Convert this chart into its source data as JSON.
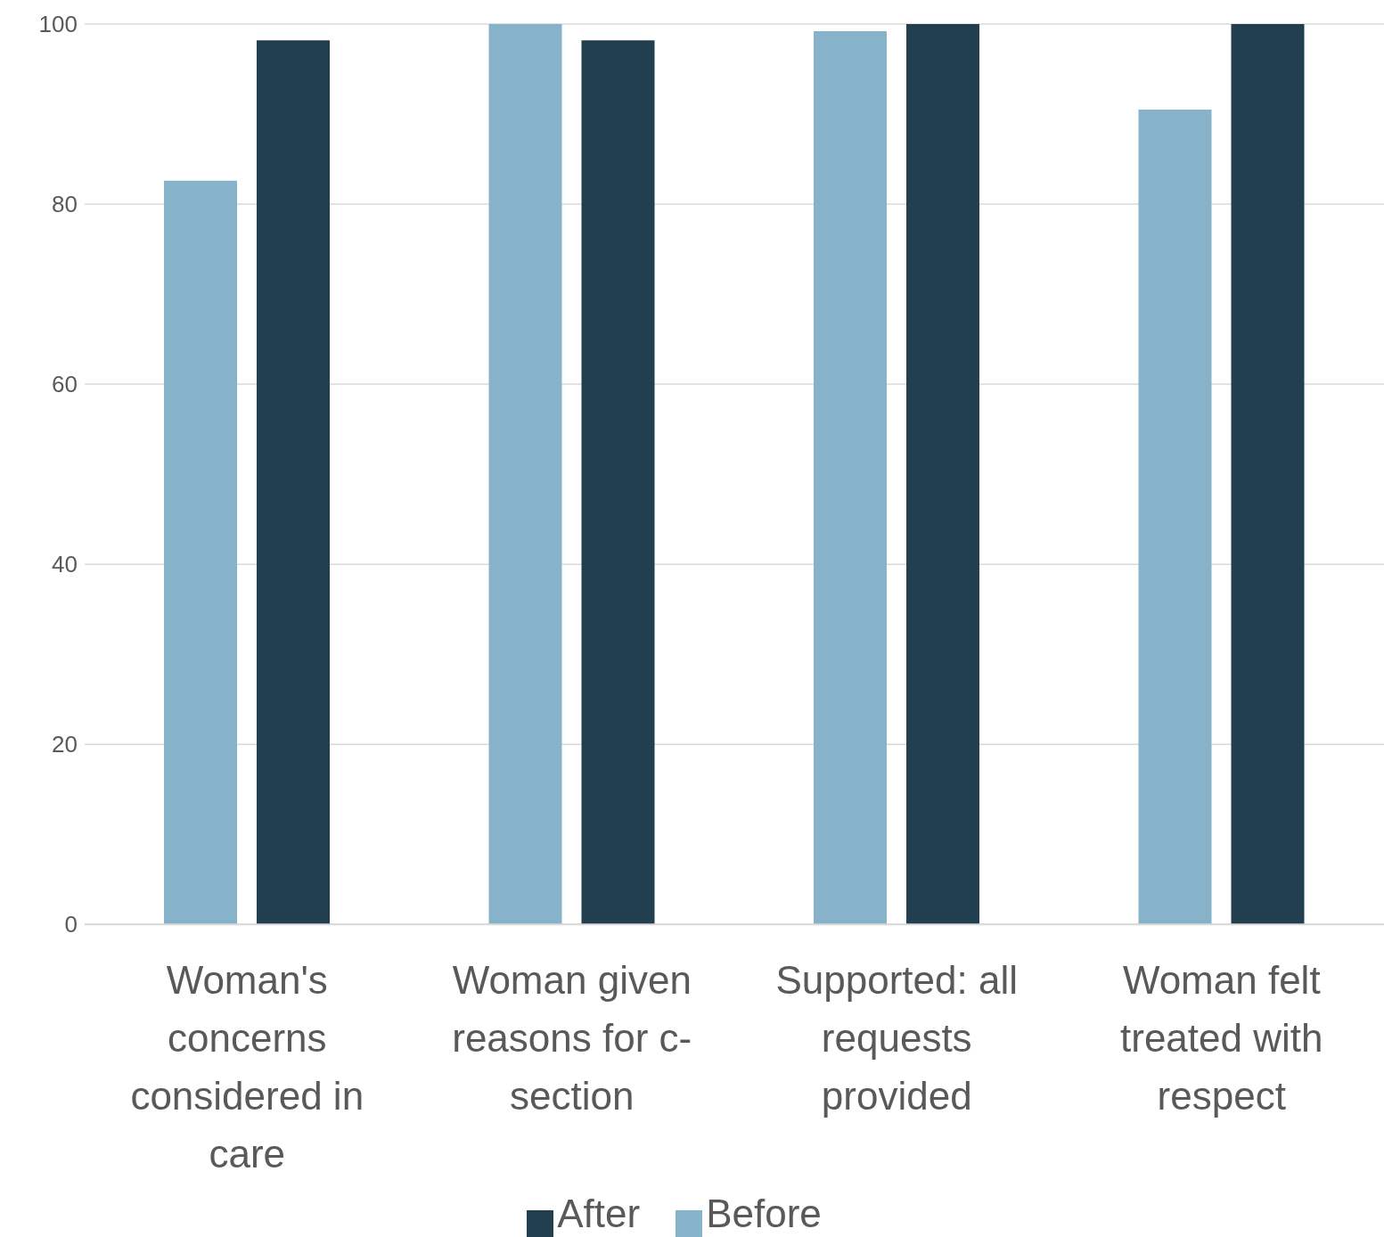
{
  "chart_data": {
    "type": "bar",
    "categories": [
      "Woman's concerns considered in care",
      "Woman given reasons for c-section",
      "Supported: all requests provided",
      "Woman felt treated with respect"
    ],
    "series": [
      {
        "name": "Before",
        "color": "#87b3ca",
        "values": [
          82.6,
          100,
          99.2,
          90.5
        ]
      },
      {
        "name": "After",
        "color": "#223f50",
        "values": [
          98.2,
          98.2,
          100,
          100
        ]
      }
    ],
    "ylim": [
      0,
      100
    ],
    "yticks": [
      0,
      20,
      40,
      60,
      80,
      100
    ],
    "grid": "y",
    "legend": "bottom"
  }
}
